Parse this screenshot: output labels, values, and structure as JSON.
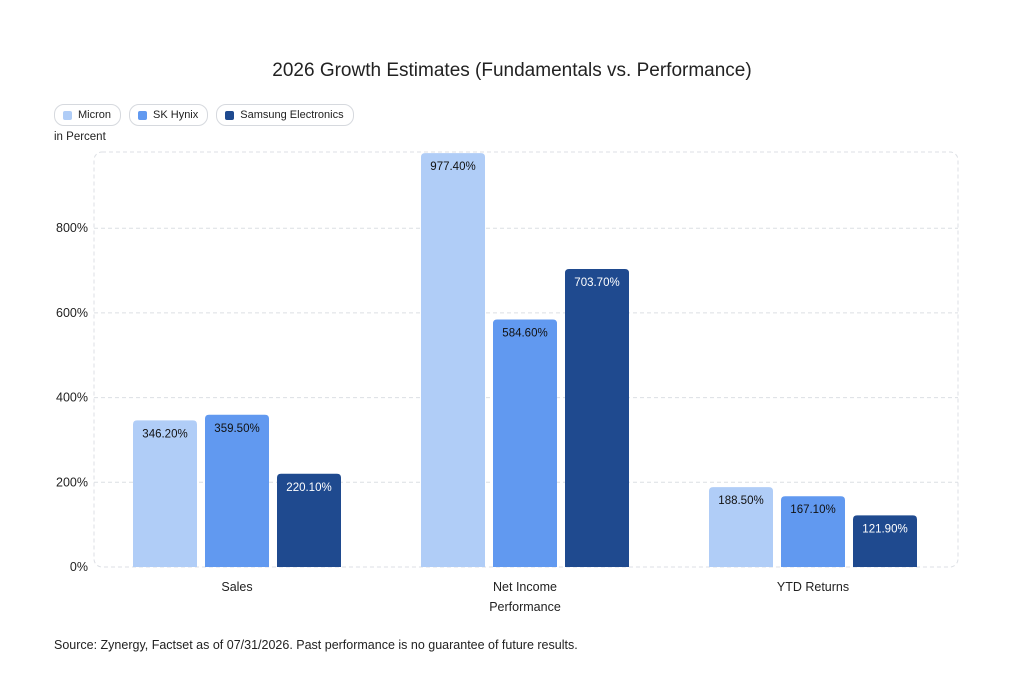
{
  "chart_data": {
    "type": "bar",
    "title": "2026 Growth Estimates (Fundamentals vs. Performance)",
    "ylabel": "in Percent",
    "xlabel": "Performance",
    "categories": [
      "Sales",
      "Net Income",
      "YTD Returns"
    ],
    "ylim": [
      0,
      980
    ],
    "yticks": [
      0,
      200,
      400,
      600,
      800
    ],
    "ytick_labels": [
      "0%",
      "200%",
      "400%",
      "600%",
      "800%"
    ],
    "grid": true,
    "legend_placement": "top-left",
    "series": [
      {
        "name": "Micron",
        "color": "#b0cdf7",
        "values": [
          346.2,
          977.4,
          188.5
        ],
        "labels": [
          "346.20%",
          "977.40%",
          "188.50%"
        ],
        "label_color": "#111111"
      },
      {
        "name": "SK Hynix",
        "color": "#6199f0",
        "values": [
          359.5,
          584.6,
          167.1
        ],
        "labels": [
          "359.50%",
          "584.60%",
          "167.10%"
        ],
        "label_color": "#111111"
      },
      {
        "name": "Samsung Electronics",
        "color": "#1f4a8f",
        "values": [
          220.1,
          703.7,
          121.9
        ],
        "labels": [
          "220.10%",
          "703.70%",
          "121.90%"
        ],
        "label_color": "#ffffff"
      }
    ]
  },
  "source": "Source: Zynergy, Factset as of 07/31/2026. Past performance is no guarantee of future results."
}
